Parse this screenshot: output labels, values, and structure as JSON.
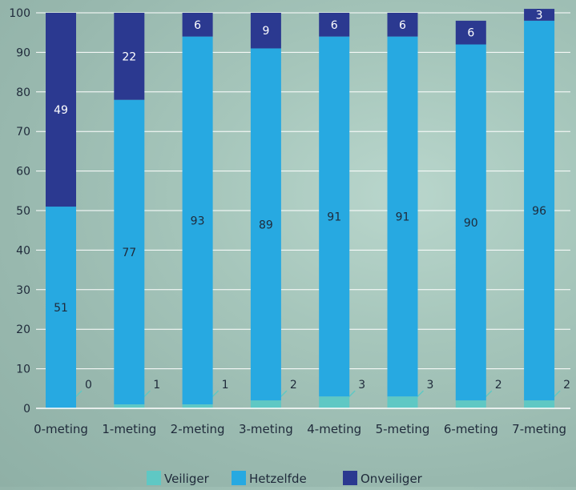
{
  "chart_data": {
    "type": "bar",
    "stacked": true,
    "categories": [
      "0-meting",
      "1-meting",
      "2-meting",
      "3-meting",
      "4-meting",
      "5-meting",
      "6-meting",
      "7-meting"
    ],
    "series": [
      {
        "name": "Veiliger",
        "values": [
          0,
          1,
          1,
          2,
          3,
          3,
          2,
          2
        ],
        "color": "#5fc8c4"
      },
      {
        "name": "Hetzelfde",
        "values": [
          51,
          77,
          93,
          89,
          91,
          91,
          90,
          96
        ],
        "color": "#27a9e1"
      },
      {
        "name": "Onveiliger",
        "values": [
          49,
          22,
          6,
          9,
          6,
          6,
          6,
          3
        ],
        "color": "#2b3990"
      }
    ],
    "ylim": [
      0,
      100
    ],
    "yticks": [
      0,
      10,
      20,
      30,
      40,
      50,
      60,
      70,
      80,
      90,
      100
    ],
    "grid": true,
    "legend_position": "bottom"
  }
}
